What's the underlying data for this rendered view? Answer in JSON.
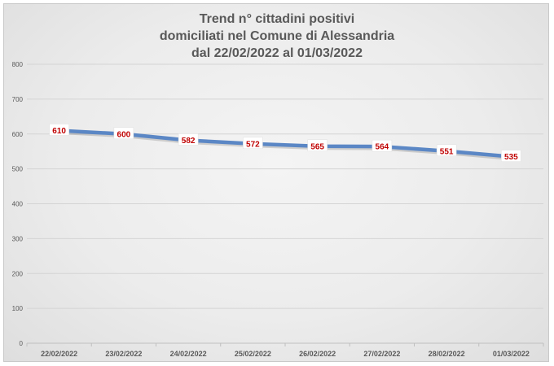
{
  "chart_data": {
    "type": "line",
    "title_lines": [
      "Trend n° cittadini positivi",
      "domiciliati nel Comune di Alessandria",
      "dal 22/02/2022 al 01/03/2022"
    ],
    "categories": [
      "22/02/2022",
      "23/02/2022",
      "24/02/2022",
      "25/02/2022",
      "26/02/2022",
      "27/02/2022",
      "28/02/2022",
      "01/03/2022"
    ],
    "values": [
      610,
      600,
      582,
      572,
      565,
      564,
      551,
      535
    ],
    "y_ticks": [
      0,
      100,
      200,
      300,
      400,
      500,
      600,
      700,
      800
    ],
    "ylim": [
      0,
      800
    ],
    "grid": true,
    "line_color": "#5b87c5",
    "label_color": "#c00000",
    "legend": "none"
  }
}
